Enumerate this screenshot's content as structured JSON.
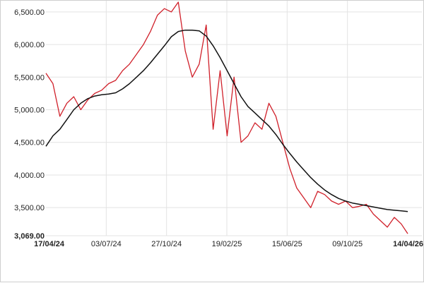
{
  "chart_data": {
    "type": "line",
    "title": "",
    "xlabel": "",
    "ylabel": "",
    "grid": true,
    "legend": "none",
    "ylim": [
      3069,
      6650
    ],
    "y_ticks": [
      {
        "value": 6500,
        "label": "6,500.00",
        "bold": false
      },
      {
        "value": 6000,
        "label": "6,000.00",
        "bold": false
      },
      {
        "value": 5500,
        "label": "5,500.00",
        "bold": false
      },
      {
        "value": 5000,
        "label": "5,000.00",
        "bold": false
      },
      {
        "value": 4500,
        "label": "4,500.00",
        "bold": false
      },
      {
        "value": 4000,
        "label": "4,000.00",
        "bold": false
      },
      {
        "value": 3500,
        "label": "3,500.00",
        "bold": false
      },
      {
        "value": 3069,
        "label": "3,069.00",
        "bold": true
      }
    ],
    "x_start": "17/04/24",
    "x_end": "14/04/26",
    "x_ticks": [
      {
        "label": "17/04/24",
        "bold": true
      },
      {
        "label": "03/07/24",
        "bold": false
      },
      {
        "label": "27/10/24",
        "bold": false
      },
      {
        "label": "19/02/25",
        "bold": false
      },
      {
        "label": "15/06/25",
        "bold": false
      },
      {
        "label": "09/10/25",
        "bold": false
      },
      {
        "label": "14/04/26",
        "bold": true
      }
    ],
    "series": [
      {
        "color": "#d0202a",
        "x": [
          "17/04/24",
          "01/05/24",
          "15/05/24",
          "29/05/24",
          "12/06/24",
          "26/06/24",
          "10/07/24",
          "24/07/24",
          "07/08/24",
          "21/08/24",
          "04/09/24",
          "18/09/24",
          "02/10/24",
          "16/10/24",
          "30/10/24",
          "13/11/24",
          "27/11/24",
          "11/12/24",
          "25/12/24",
          "08/01/25",
          "22/01/25",
          "05/02/25",
          "19/02/25",
          "05/03/25",
          "19/03/25",
          "02/04/25",
          "16/04/25",
          "30/04/25",
          "14/05/25",
          "28/05/25",
          "11/06/25",
          "25/06/25",
          "09/07/25",
          "23/07/25",
          "06/08/25",
          "20/08/25",
          "03/09/25",
          "17/09/25",
          "01/10/25",
          "15/10/25",
          "29/10/25",
          "12/11/25",
          "26/11/25",
          "10/12/25",
          "24/12/25",
          "07/01/26",
          "21/01/26",
          "04/02/26",
          "18/02/26",
          "04/03/26",
          "18/03/26",
          "01/04/26",
          "14/04/26"
        ],
        "values": [
          5560,
          5400,
          4900,
          5100,
          5200,
          5000,
          5150,
          5250,
          5300,
          5400,
          5450,
          5600,
          5700,
          5850,
          6000,
          6200,
          6450,
          6550,
          6500,
          6650,
          5900,
          5500,
          5700,
          6300,
          4700,
          5600,
          4600,
          5500,
          4500,
          4600,
          4800,
          4700,
          5100,
          4900,
          4500,
          4100,
          3800,
          3650,
          3500,
          3750,
          3700,
          3600,
          3550,
          3600,
          3500,
          3520,
          3550,
          3400,
          3300,
          3200,
          3350,
          3250,
          3100
        ]
      },
      {
        "color": "#111111",
        "x": [
          "17/04/24",
          "01/05/24",
          "15/05/24",
          "29/05/24",
          "12/06/24",
          "26/06/24",
          "10/07/24",
          "24/07/24",
          "07/08/24",
          "21/08/24",
          "04/09/24",
          "18/09/24",
          "02/10/24",
          "16/10/24",
          "30/10/24",
          "13/11/24",
          "27/11/24",
          "11/12/24",
          "25/12/24",
          "08/01/25",
          "22/01/25",
          "05/02/25",
          "19/02/25",
          "05/03/25",
          "19/03/25",
          "02/04/25",
          "16/04/25",
          "30/04/25",
          "14/05/25",
          "28/05/25",
          "11/06/25",
          "25/06/25",
          "09/07/25",
          "23/07/25",
          "06/08/25",
          "20/08/25",
          "03/09/25",
          "17/09/25",
          "01/10/25",
          "15/10/25",
          "29/10/25",
          "12/11/25",
          "26/11/25",
          "10/12/25",
          "24/12/25",
          "07/01/26",
          "21/01/26",
          "04/02/26",
          "18/02/26",
          "04/03/26",
          "18/03/26",
          "01/04/26",
          "14/04/26"
        ],
        "values": [
          4440,
          4600,
          4700,
          4850,
          5000,
          5100,
          5170,
          5210,
          5230,
          5240,
          5260,
          5320,
          5400,
          5500,
          5600,
          5720,
          5850,
          5980,
          6120,
          6200,
          6220,
          6220,
          6210,
          6130,
          5980,
          5800,
          5600,
          5400,
          5200,
          5050,
          4950,
          4850,
          4750,
          4620,
          4470,
          4330,
          4200,
          4080,
          3960,
          3860,
          3770,
          3700,
          3640,
          3600,
          3570,
          3550,
          3530,
          3510,
          3490,
          3470,
          3460,
          3450,
          3440
        ]
      }
    ]
  }
}
